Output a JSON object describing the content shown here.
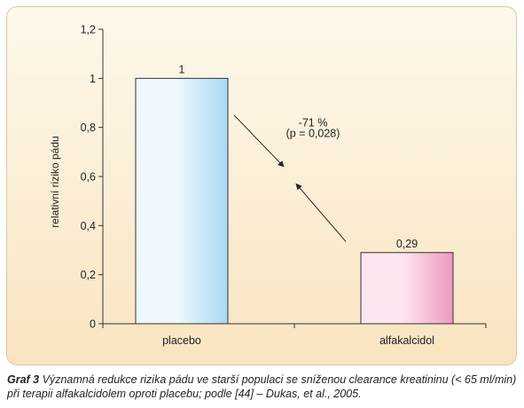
{
  "chart_data": {
    "type": "bar",
    "categories": [
      "placebo",
      "alfakalcidol"
    ],
    "values": [
      1,
      0.29
    ],
    "value_labels": [
      "1",
      "0,29"
    ],
    "ylabel": "relativní riziko pádu",
    "ylim": [
      0,
      1.2
    ],
    "yticks": [
      0,
      0.2,
      0.4,
      0.6,
      0.8,
      1,
      1.2
    ],
    "ytick_labels": [
      "0",
      "0,2",
      "0,4",
      "0,6",
      "0,8",
      "1",
      "1,2"
    ],
    "annotation": {
      "line1": "-71 %",
      "line2": "(p = 0,028)"
    },
    "bar_colors": [
      {
        "light": "#eef8ff",
        "mid": "#a8d8f4",
        "stroke": "#303030"
      },
      {
        "light": "#fde6f0",
        "mid": "#ee98c0",
        "stroke": "#303030"
      }
    ],
    "grid": false,
    "legend": "none"
  },
  "caption": {
    "label": "Graf 3",
    "text": "Významná redukce rizika pádu ve starší populaci se sníženou clearance kreatininu (< 65 ml/min) při terapii alfakalcidolem oproti placebu; podle [44] – Dukas, et al., 2005."
  }
}
